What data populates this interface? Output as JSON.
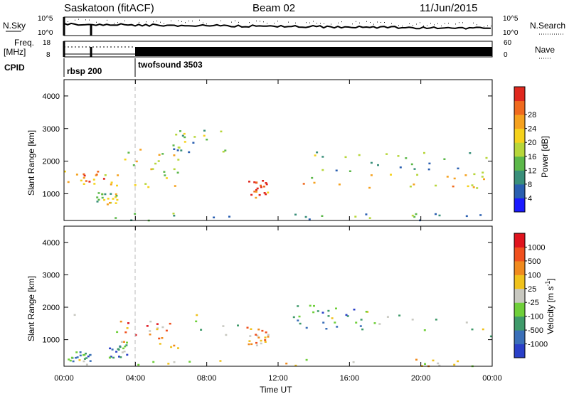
{
  "header": {
    "station": "Saskatoon (fitACF)",
    "beam": "Beam 02",
    "date": "11/Jun/2015"
  },
  "panels": {
    "nsky_label": "N.Sky",
    "nsearch_label": "N.Search",
    "freq_label": "Freq.",
    "freq_unit": "[MHz]",
    "nave_label": "Nave",
    "cpid_label": "CPID",
    "cpid_segments": [
      {
        "name": "rbsp 200",
        "start": "00:00",
        "end": "04:00"
      },
      {
        "name": "twofsound 3503",
        "start": "04:00",
        "end": "24:00"
      }
    ],
    "nsky_ticks": [
      "10^5",
      "10^0"
    ],
    "nsearch_ticks": [
      "10^5",
      "10^0"
    ],
    "freq_ticks": [
      "18",
      "8"
    ],
    "nave_ticks": [
      "60",
      "0"
    ]
  },
  "chart_data": [
    {
      "type": "heatmap",
      "parameter": "power",
      "ylabel": "Slant Range [km]",
      "xlabel": "Time UT",
      "x_ticks": [
        "00:00",
        "04:00",
        "08:00",
        "12:00",
        "16:00",
        "20:00",
        "00:00"
      ],
      "xlim_hours": [
        0,
        24
      ],
      "y_ticks": [
        1000,
        2000,
        3000,
        4000
      ],
      "ylim": [
        180,
        4500
      ],
      "colorbar": {
        "label": "Power [dB]",
        "ticks": [
          4,
          8,
          12,
          16,
          20,
          24,
          28
        ],
        "colors": [
          "#1a1aff",
          "#2a5fb0",
          "#3a8f7a",
          "#5cb84a",
          "#b7d63a",
          "#f5d21c",
          "#f5a11e",
          "#f06a1e",
          "#e0281e"
        ]
      },
      "regions": [
        {
          "t0": 0.0,
          "t1": 3.2,
          "r0": 1250,
          "r1": 1750,
          "level": 0.7
        },
        {
          "t0": 1.8,
          "t1": 3.0,
          "r0": 700,
          "r1": 1050,
          "level": 0.5
        },
        {
          "t0": 3.2,
          "t1": 6.5,
          "r0": 1000,
          "r1": 2400,
          "level": 0.55
        },
        {
          "t0": 6.0,
          "t1": 9.0,
          "r0": 2300,
          "r1": 3000,
          "level": 0.4
        },
        {
          "t0": 10.2,
          "t1": 11.4,
          "r0": 850,
          "r1": 1450,
          "level": 0.85
        },
        {
          "t0": 12.5,
          "t1": 24.0,
          "r0": 1200,
          "r1": 1700,
          "level": 0.65
        },
        {
          "t0": 14.0,
          "t1": 24.0,
          "r0": 1700,
          "r1": 2300,
          "level": 0.4
        },
        {
          "t0": 0.0,
          "t1": 24.0,
          "r0": 200,
          "r1": 450,
          "level": 0.3
        }
      ]
    },
    {
      "type": "heatmap",
      "parameter": "velocity",
      "ylabel": "Slant Range [km]",
      "xlabel": "Time UT",
      "x_ticks": [
        "00:00",
        "04:00",
        "08:00",
        "12:00",
        "16:00",
        "20:00",
        "00:00"
      ],
      "xlim_hours": [
        0,
        24
      ],
      "y_ticks": [
        1000,
        2000,
        3000,
        4000
      ],
      "ylim": [
        180,
        4500
      ],
      "colorbar": {
        "label": "Velocity [m s",
        "label_sup": "-1",
        "label_end": "]",
        "ticks": [
          1000,
          500,
          100,
          25,
          -25,
          -100,
          -500,
          -1000
        ],
        "colors": [
          "#2a40c8",
          "#3a6fb8",
          "#3f9a6a",
          "#6fcf3a",
          "#c8c8c0",
          "#f0c21c",
          "#f08a1e",
          "#f0501e",
          "#e0141e"
        ]
      },
      "regions": [
        {
          "t0": 0.0,
          "t1": 24.0,
          "r0": 1100,
          "r1": 1900,
          "level": 0.47
        },
        {
          "t0": 3.0,
          "t1": 6.5,
          "r0": 700,
          "r1": 1600,
          "level": 0.75
        },
        {
          "t0": 10.2,
          "t1": 11.4,
          "r0": 850,
          "r1": 1450,
          "level": 0.7
        },
        {
          "t0": 13.0,
          "t1": 17.0,
          "r0": 1300,
          "r1": 2100,
          "level": 0.2
        },
        {
          "t0": 0.2,
          "t1": 1.5,
          "r0": 350,
          "r1": 650,
          "level": 0.3
        },
        {
          "t0": 2.5,
          "t1": 3.5,
          "r0": 450,
          "r1": 1000,
          "level": 0.3
        },
        {
          "t0": 0.0,
          "t1": 24.0,
          "r0": 200,
          "r1": 420,
          "level": 0.55
        }
      ]
    }
  ]
}
